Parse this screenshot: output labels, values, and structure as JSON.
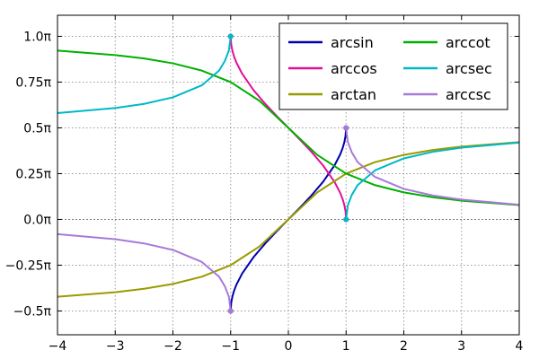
{
  "chart_data": {
    "type": "line",
    "title": "",
    "xlabel": "",
    "ylabel": "",
    "xlim": [
      -4,
      4
    ],
    "ylim": [
      -0.63,
      1.115
    ],
    "y_unit": "π",
    "grid": true,
    "zero_line": true,
    "legend_position": "top-right",
    "legend_columns": 2,
    "x_ticks": [
      {
        "value": -4,
        "label": "−4"
      },
      {
        "value": -3,
        "label": "−3"
      },
      {
        "value": -2,
        "label": "−2"
      },
      {
        "value": -1,
        "label": "−1"
      },
      {
        "value": 0,
        "label": "0"
      },
      {
        "value": 1,
        "label": "1"
      },
      {
        "value": 2,
        "label": "2"
      },
      {
        "value": 3,
        "label": "3"
      },
      {
        "value": 4,
        "label": "4"
      }
    ],
    "y_ticks": [
      {
        "value": 1.0,
        "label": "1.0π"
      },
      {
        "value": 0.75,
        "label": "0.75π"
      },
      {
        "value": 0.5,
        "label": "0.5π"
      },
      {
        "value": 0.25,
        "label": "0.25π"
      },
      {
        "value": 0.0,
        "label": "0.0π"
      },
      {
        "value": -0.25,
        "label": "−0.25π"
      },
      {
        "value": -0.5,
        "label": "−0.5π"
      }
    ],
    "series": [
      {
        "name": "arcsin",
        "color": "#0000b0",
        "x": [
          -1.0,
          -0.99,
          -0.97,
          -0.94,
          -0.9,
          -0.8,
          -0.6,
          -0.4,
          -0.2,
          0.0,
          0.2,
          0.4,
          0.6,
          0.8,
          0.9,
          0.94,
          0.97,
          0.99,
          1.0
        ],
        "y": [
          -0.5,
          -0.4549,
          -0.4218,
          -0.3889,
          -0.3564,
          -0.2952,
          -0.2048,
          -0.131,
          -0.0641,
          0.0,
          0.0641,
          0.131,
          0.2048,
          0.2952,
          0.3564,
          0.3889,
          0.4218,
          0.4549,
          0.5
        ],
        "endpoints": [
          [
            -1.0,
            -0.5
          ],
          [
            1.0,
            0.5
          ]
        ]
      },
      {
        "name": "arccos",
        "color": "#e0109a",
        "x": [
          -1.0,
          -0.99,
          -0.97,
          -0.94,
          -0.9,
          -0.8,
          -0.6,
          -0.4,
          -0.2,
          0.0,
          0.2,
          0.4,
          0.6,
          0.8,
          0.9,
          0.94,
          0.97,
          0.99,
          1.0
        ],
        "y": [
          1.0,
          0.9549,
          0.9218,
          0.8889,
          0.8564,
          0.7952,
          0.7048,
          0.631,
          0.5641,
          0.5,
          0.4359,
          0.369,
          0.2952,
          0.2048,
          0.1436,
          0.1111,
          0.0782,
          0.0451,
          0.0
        ],
        "endpoints": [
          [
            -1.0,
            1.0
          ],
          [
            1.0,
            0.0
          ]
        ]
      },
      {
        "name": "arctan",
        "color": "#9a9a00",
        "x": [
          -4,
          -3,
          -2.5,
          -2,
          -1.5,
          -1,
          -0.5,
          0,
          0.5,
          1,
          1.5,
          2,
          2.5,
          3,
          4
        ],
        "y": [
          -0.422,
          -0.3976,
          -0.3789,
          -0.3524,
          -0.3128,
          -0.25,
          -0.1476,
          0.0,
          0.1476,
          0.25,
          0.3128,
          0.3524,
          0.3789,
          0.3976,
          0.422
        ],
        "endpoints": []
      },
      {
        "name": "arccot",
        "color": "#00b000",
        "x": [
          -4,
          -3,
          -2.5,
          -2,
          -1.5,
          -1,
          -0.5,
          0,
          0.5,
          1,
          1.5,
          2,
          2.5,
          3,
          4
        ],
        "y": [
          0.922,
          0.8976,
          0.8789,
          0.8524,
          0.8128,
          0.75,
          0.6476,
          0.5,
          0.3524,
          0.25,
          0.1872,
          0.1476,
          0.1211,
          0.1024,
          0.078
        ],
        "endpoints": []
      },
      {
        "name": "arcsec",
        "color": "#00b8c8",
        "x": [
          -4,
          -3,
          -2.5,
          -2,
          -1.5,
          -1.2,
          -1.1,
          -1.03,
          -1.0,
          1.0,
          1.03,
          1.1,
          1.2,
          1.5,
          2,
          2.5,
          3,
          4
        ],
        "y": [
          0.5804,
          0.6082,
          0.631,
          0.6667,
          0.7323,
          0.8129,
          0.8656,
          0.9226,
          1.0,
          0.0,
          0.0774,
          0.1344,
          0.1871,
          0.2677,
          0.3333,
          0.369,
          0.3918,
          0.4196
        ],
        "segments": [
          [
            0,
            8
          ],
          [
            9,
            17
          ]
        ],
        "endpoints": [
          [
            -1.0,
            1.0
          ],
          [
            1.0,
            0.0
          ]
        ]
      },
      {
        "name": "arccsc",
        "color": "#a87ad8",
        "x": [
          -4,
          -3,
          -2.5,
          -2,
          -1.5,
          -1.2,
          -1.1,
          -1.03,
          -1.0,
          1.0,
          1.03,
          1.1,
          1.2,
          1.5,
          2,
          2.5,
          3,
          4
        ],
        "y": [
          -0.0804,
          -0.1082,
          -0.131,
          -0.1667,
          -0.2323,
          -0.3129,
          -0.3656,
          -0.4226,
          -0.5,
          0.5,
          0.4226,
          0.3656,
          0.3129,
          0.2323,
          0.1667,
          0.131,
          0.1082,
          0.0804
        ],
        "segments": [
          [
            0,
            8
          ],
          [
            9,
            17
          ]
        ],
        "endpoints": [
          [
            -1.0,
            -0.5
          ],
          [
            1.0,
            0.5
          ]
        ]
      }
    ]
  }
}
